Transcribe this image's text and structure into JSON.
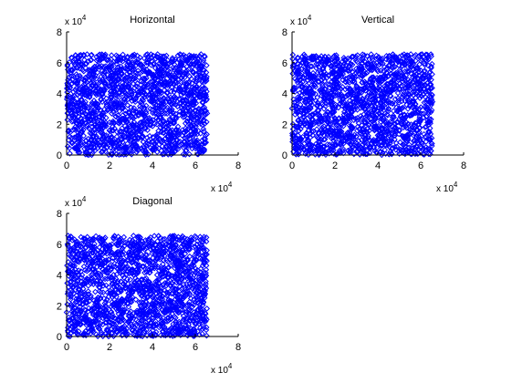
{
  "chart_data": [
    {
      "type": "scatter",
      "title": "Horizontal",
      "xlabel": "",
      "ylabel": "",
      "xlim": [
        0,
        80000
      ],
      "ylim": [
        0,
        80000
      ],
      "x_ticks": [
        "0",
        "2",
        "4",
        "6",
        "8"
      ],
      "y_ticks": [
        "0",
        "2",
        "4",
        "6",
        "8"
      ],
      "x_multiplier": {
        "base": "x 10",
        "exponent": "4"
      },
      "y_multiplier": {
        "base": "x 10",
        "exponent": "4"
      },
      "marker": "diamond",
      "color": "#0000ff",
      "grid": false,
      "series": [
        {
          "point_count": 1800,
          "x_range": [
            0,
            65536
          ],
          "y_range": [
            0,
            65536
          ],
          "distribution": "uniform-random"
        }
      ]
    },
    {
      "type": "scatter",
      "title": "Vertical",
      "xlabel": "",
      "ylabel": "",
      "xlim": [
        0,
        80000
      ],
      "ylim": [
        0,
        80000
      ],
      "x_ticks": [
        "0",
        "2",
        "4",
        "6",
        "8"
      ],
      "y_ticks": [
        "0",
        "2",
        "4",
        "6",
        "8"
      ],
      "x_multiplier": {
        "base": "x 10",
        "exponent": "4"
      },
      "y_multiplier": {
        "base": "x 10",
        "exponent": "4"
      },
      "marker": "diamond",
      "color": "#0000ff",
      "grid": false,
      "series": [
        {
          "point_count": 1800,
          "x_range": [
            0,
            65536
          ],
          "y_range": [
            0,
            65536
          ],
          "distribution": "uniform-random"
        }
      ]
    },
    {
      "type": "scatter",
      "title": "Diagonal",
      "xlabel": "",
      "ylabel": "",
      "xlim": [
        0,
        80000
      ],
      "ylim": [
        0,
        80000
      ],
      "x_ticks": [
        "0",
        "2",
        "4",
        "6",
        "8"
      ],
      "y_ticks": [
        "0",
        "2",
        "4",
        "6",
        "8"
      ],
      "x_multiplier": {
        "base": "x 10",
        "exponent": "4"
      },
      "y_multiplier": {
        "base": "x 10",
        "exponent": "4"
      },
      "marker": "diamond",
      "color": "#0000ff",
      "grid": false,
      "series": [
        {
          "point_count": 1800,
          "x_range": [
            0,
            65536
          ],
          "y_range": [
            0,
            65536
          ],
          "distribution": "uniform-random"
        }
      ]
    }
  ]
}
